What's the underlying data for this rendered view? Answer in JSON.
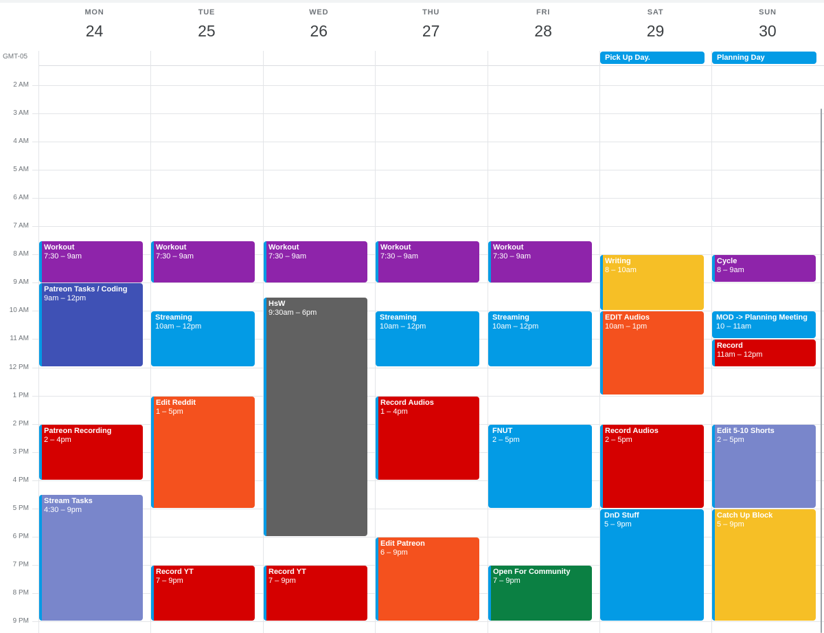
{
  "timezone": "GMT-05",
  "days": [
    {
      "dow": "MON",
      "date": "24"
    },
    {
      "dow": "TUE",
      "date": "25"
    },
    {
      "dow": "WED",
      "date": "26"
    },
    {
      "dow": "THU",
      "date": "27"
    },
    {
      "dow": "FRI",
      "date": "28"
    },
    {
      "dow": "SAT",
      "date": "29"
    },
    {
      "dow": "SUN",
      "date": "30"
    }
  ],
  "hours": [
    "2 AM",
    "3 AM",
    "4 AM",
    "5 AM",
    "6 AM",
    "7 AM",
    "8 AM",
    "9 AM",
    "10 AM",
    "11 AM",
    "12 PM",
    "1 PM",
    "2 PM",
    "3 PM",
    "4 PM",
    "5 PM",
    "6 PM",
    "7 PM",
    "8 PM",
    "9 PM"
  ],
  "colors": {
    "grape": "#8e24aa",
    "blueberry": "#3f51b5",
    "peacock": "#039be5",
    "graphite": "#616161",
    "tangerine": "#f4511e",
    "tomato": "#d50000",
    "lavender": "#7986cb",
    "banana": "#f6bf26",
    "basil": "#0b8043"
  },
  "allday_events": [
    {
      "day": 5,
      "title": "Pick Up Day.",
      "color": "peacock"
    },
    {
      "day": 6,
      "title": "Planning Day",
      "color": "peacock"
    }
  ],
  "events": [
    {
      "day": 0,
      "title": "Workout",
      "time": "7:30 – 9am",
      "start": 7.5,
      "end": 9,
      "color": "grape",
      "strip": true
    },
    {
      "day": 0,
      "title": "Patreon Tasks / Coding",
      "time": "9am – 12pm",
      "start": 9,
      "end": 12,
      "color": "blueberry",
      "strip": true
    },
    {
      "day": 0,
      "title": "Patreon Recording",
      "time": "2 – 4pm",
      "start": 14,
      "end": 16,
      "color": "tomato",
      "strip": true
    },
    {
      "day": 0,
      "title": "Stream Tasks",
      "time": "4:30 – 9pm",
      "start": 16.5,
      "end": 21,
      "color": "lavender",
      "strip": true
    },
    {
      "day": 1,
      "title": "Workout",
      "time": "7:30 – 9am",
      "start": 7.5,
      "end": 9,
      "color": "grape",
      "strip": true
    },
    {
      "day": 1,
      "title": "Streaming",
      "time": "10am – 12pm",
      "start": 10,
      "end": 12,
      "color": "peacock",
      "strip": false
    },
    {
      "day": 1,
      "title": "Edit Reddit",
      "time": "1 – 5pm",
      "start": 13,
      "end": 17,
      "color": "tangerine",
      "strip": true
    },
    {
      "day": 1,
      "title": "Record YT",
      "time": "7 – 9pm",
      "start": 19,
      "end": 21,
      "color": "tomato",
      "strip": true
    },
    {
      "day": 2,
      "title": "Workout",
      "time": "7:30 – 9am",
      "start": 7.5,
      "end": 9,
      "color": "grape",
      "strip": true
    },
    {
      "day": 2,
      "title": "HsW",
      "time": "9:30am – 6pm",
      "start": 9.5,
      "end": 18,
      "color": "graphite",
      "strip": true
    },
    {
      "day": 2,
      "title": "Record YT",
      "time": "7 – 9pm",
      "start": 19,
      "end": 21,
      "color": "tomato",
      "strip": true
    },
    {
      "day": 3,
      "title": "Workout",
      "time": "7:30 – 9am",
      "start": 7.5,
      "end": 9,
      "color": "grape",
      "strip": true
    },
    {
      "day": 3,
      "title": "Streaming",
      "time": "10am – 12pm",
      "start": 10,
      "end": 12,
      "color": "peacock",
      "strip": false
    },
    {
      "day": 3,
      "title": "Record Audios",
      "time": "1 – 4pm",
      "start": 13,
      "end": 16,
      "color": "tomato",
      "strip": true
    },
    {
      "day": 3,
      "title": "Edit Patreon",
      "time": "6 – 9pm",
      "start": 18,
      "end": 21,
      "color": "tangerine",
      "strip": true
    },
    {
      "day": 4,
      "title": "Workout",
      "time": "7:30 – 9am",
      "start": 7.5,
      "end": 9,
      "color": "grape",
      "strip": true
    },
    {
      "day": 4,
      "title": "Streaming",
      "time": "10am – 12pm",
      "start": 10,
      "end": 12,
      "color": "peacock",
      "strip": false
    },
    {
      "day": 4,
      "title": "FNUT",
      "time": "2 – 5pm",
      "start": 14,
      "end": 17,
      "color": "peacock",
      "strip": false
    },
    {
      "day": 4,
      "title": "Open For Community",
      "time": "7 – 9pm",
      "start": 19,
      "end": 21,
      "color": "basil",
      "strip": true
    },
    {
      "day": 5,
      "title": "Writing",
      "time": "8 – 10am",
      "start": 8,
      "end": 10,
      "color": "banana",
      "strip": true
    },
    {
      "day": 5,
      "title": "EDIT Audios",
      "time": "10am – 1pm",
      "start": 10,
      "end": 13,
      "color": "tangerine",
      "strip": true
    },
    {
      "day": 5,
      "title": "Record Audios",
      "time": "2 – 5pm",
      "start": 14,
      "end": 17,
      "color": "tomato",
      "strip": true
    },
    {
      "day": 5,
      "title": "DnD Stuff",
      "time": "5 – 9pm",
      "start": 17,
      "end": 21,
      "color": "peacock",
      "strip": false
    },
    {
      "day": 6,
      "title": "Cycle",
      "time": "8 – 9am",
      "start": 8,
      "end": 9,
      "color": "grape",
      "strip": true
    },
    {
      "day": 6,
      "title": "MOD -> Planning Meeting",
      "time": "10 – 11am",
      "start": 10,
      "end": 11,
      "color": "peacock",
      "strip": false
    },
    {
      "day": 6,
      "title": "Record",
      "time": "11am – 12pm",
      "start": 11,
      "end": 12,
      "color": "tomato",
      "strip": true
    },
    {
      "day": 6,
      "title": "Edit 5-10 Shorts",
      "time": "2 – 5pm",
      "start": 14,
      "end": 17,
      "color": "lavender",
      "strip": true
    },
    {
      "day": 6,
      "title": "Catch Up Block",
      "time": "5 – 9pm",
      "start": 17,
      "end": 21,
      "color": "banana",
      "strip": true
    }
  ]
}
